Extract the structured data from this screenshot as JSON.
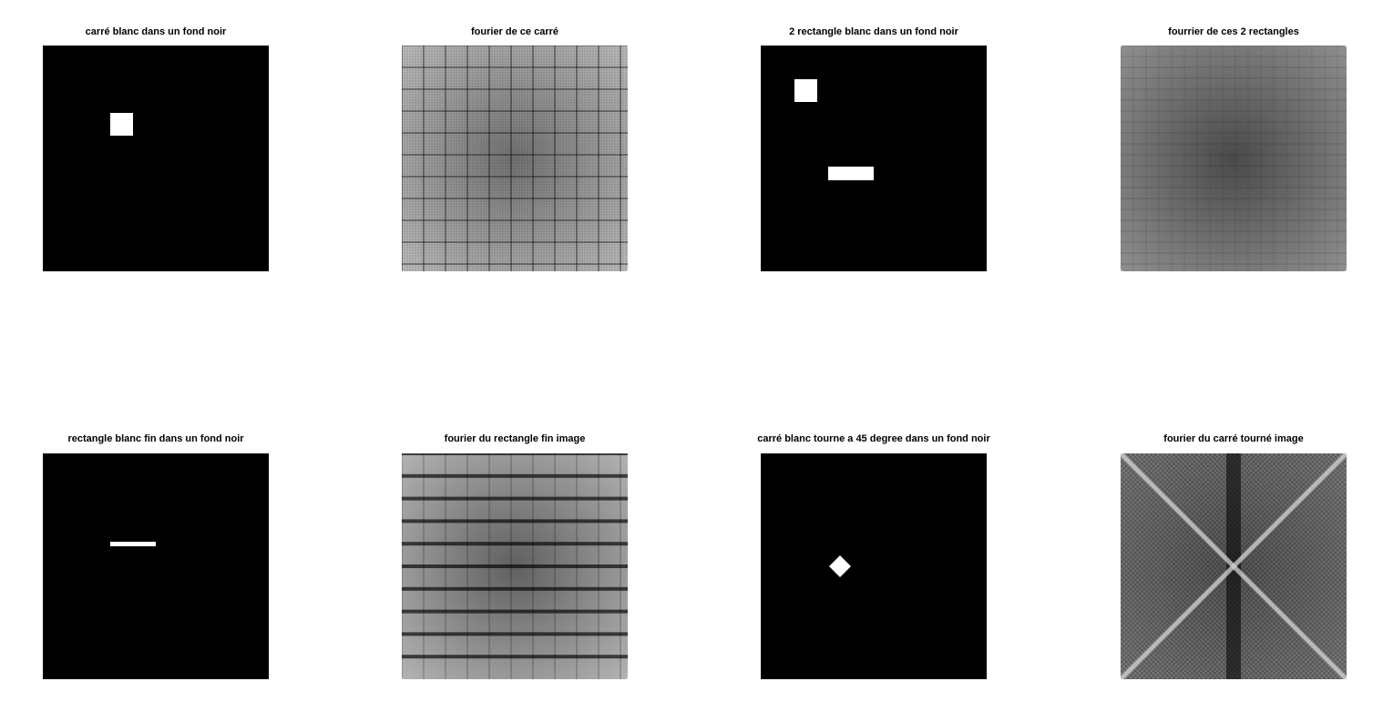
{
  "figure": {
    "panels": [
      {
        "title": "carré blanc dans un fond noir",
        "content": "white square on black background"
      },
      {
        "title": "fourier de ce carré",
        "content": "fourier magnitude image"
      },
      {
        "title": "2 rectangle blanc dans un fond noir",
        "content": "two white rectangles on black background"
      },
      {
        "title": "fourrier de ces 2 rectangles",
        "content": "fourier magnitude image"
      },
      {
        "title": "rectangle blanc fin dans un fond noir",
        "content": "thin white rectangle on black background"
      },
      {
        "title": "fourier du rectangle fin image",
        "content": "fourier magnitude image"
      },
      {
        "title": "carré blanc tourne a 45 degree dans un fond noir",
        "content": "white square rotated 45 degrees on black background"
      },
      {
        "title": "fourier du carré tourné image",
        "content": "fourier magnitude image"
      }
    ]
  },
  "colors": {
    "background": "#ffffff",
    "image_black": "#000000",
    "image_white": "#ffffff",
    "fourier_gray": "#7a7a7a"
  }
}
